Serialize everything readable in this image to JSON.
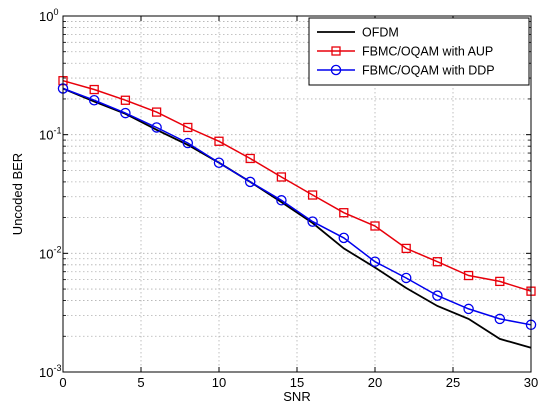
{
  "chart_data": {
    "type": "line",
    "title": "",
    "xlabel": "SNR",
    "ylabel": "Uncoded BER",
    "xlim": [
      0,
      30
    ],
    "ylim": [
      0.001,
      1
    ],
    "yscale": "log",
    "grid": true,
    "legend_position": "top-right",
    "x_ticks": [
      0,
      5,
      10,
      15,
      20,
      25,
      30
    ],
    "y_ticks": [
      {
        "value": 0.001,
        "base": "10",
        "exp": "-3"
      },
      {
        "value": 0.01,
        "base": "10",
        "exp": "-2"
      },
      {
        "value": 0.1,
        "base": "10",
        "exp": "-1"
      },
      {
        "value": 1,
        "base": "10",
        "exp": "0"
      }
    ],
    "series": [
      {
        "name": "OFDM",
        "color": "#000000",
        "marker": "none",
        "x": [
          0,
          2,
          4,
          6,
          8,
          10,
          12,
          14,
          16,
          18,
          20,
          22,
          24,
          26,
          28,
          30
        ],
        "y": [
          0.245,
          0.19,
          0.15,
          0.11,
          0.082,
          0.058,
          0.04,
          0.027,
          0.018,
          0.011,
          0.0076,
          0.0051,
          0.0036,
          0.0028,
          0.0019,
          0.0016
        ]
      },
      {
        "name": "FBMC/OQAM with AUP",
        "color": "#e8000b",
        "marker": "square",
        "x": [
          0,
          2,
          4,
          6,
          8,
          10,
          12,
          14,
          16,
          18,
          20,
          22,
          24,
          26,
          28,
          30
        ],
        "y": [
          0.285,
          0.24,
          0.195,
          0.155,
          0.115,
          0.088,
          0.063,
          0.044,
          0.031,
          0.022,
          0.017,
          0.011,
          0.0085,
          0.0065,
          0.0058,
          0.0048
        ]
      },
      {
        "name": "FBMC/OQAM with DDP",
        "color": "#0000ee",
        "marker": "circle",
        "x": [
          0,
          2,
          4,
          6,
          8,
          10,
          12,
          14,
          16,
          18,
          20,
          22,
          24,
          26,
          28,
          30
        ],
        "y": [
          0.245,
          0.195,
          0.152,
          0.115,
          0.085,
          0.058,
          0.04,
          0.028,
          0.0185,
          0.0135,
          0.0085,
          0.0062,
          0.0044,
          0.0034,
          0.0028,
          0.0025
        ]
      }
    ]
  }
}
